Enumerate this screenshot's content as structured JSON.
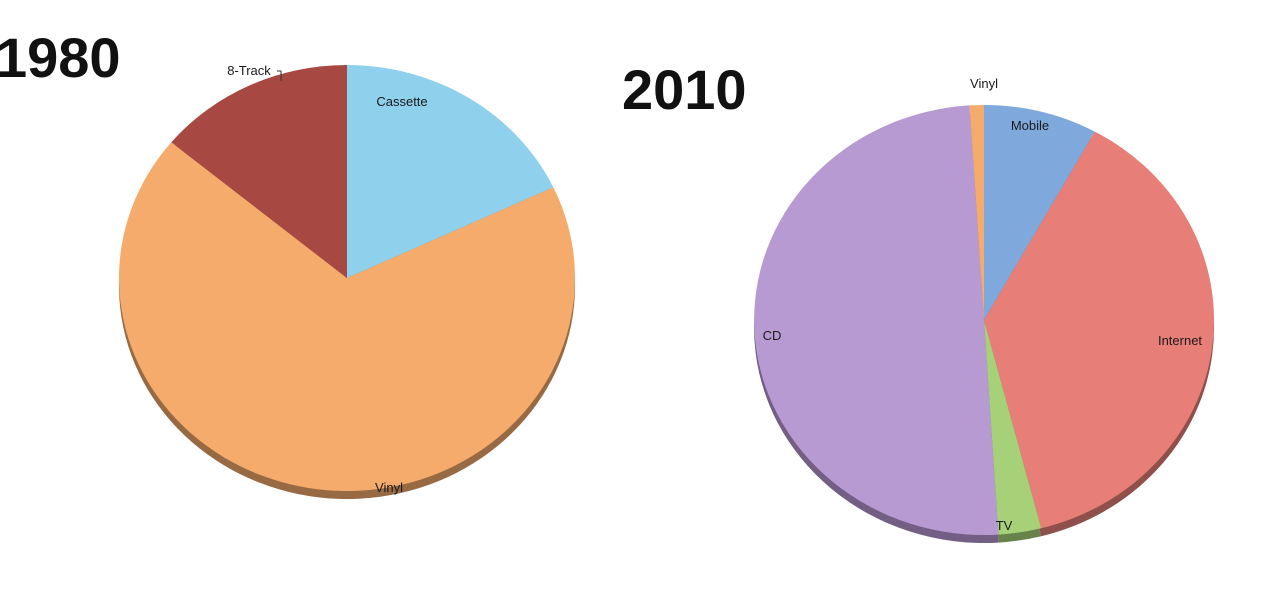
{
  "chart_data": [
    {
      "type": "pie",
      "title": "1980",
      "slices": [
        {
          "label": "Cassette",
          "value": 18,
          "color": "#8fd0ec"
        },
        {
          "label": "Vinyl",
          "value": 68,
          "color": "#f5ab6c"
        },
        {
          "label": "8-Track",
          "value": 14,
          "color": "#a84843"
        }
      ]
    },
    {
      "type": "pie",
      "title": "2010",
      "slices": [
        {
          "label": "Mobile",
          "value": 8,
          "color": "#7fa8dd"
        },
        {
          "label": "Internet",
          "value": 38,
          "color": "#e77f78"
        },
        {
          "label": "TV",
          "value": 3,
          "color": "#a6d178"
        },
        {
          "label": "CD",
          "value": 50,
          "color": "#b89ad3"
        },
        {
          "label": "Vinyl",
          "value": 1,
          "color": "#f5ab6c"
        }
      ]
    }
  ]
}
